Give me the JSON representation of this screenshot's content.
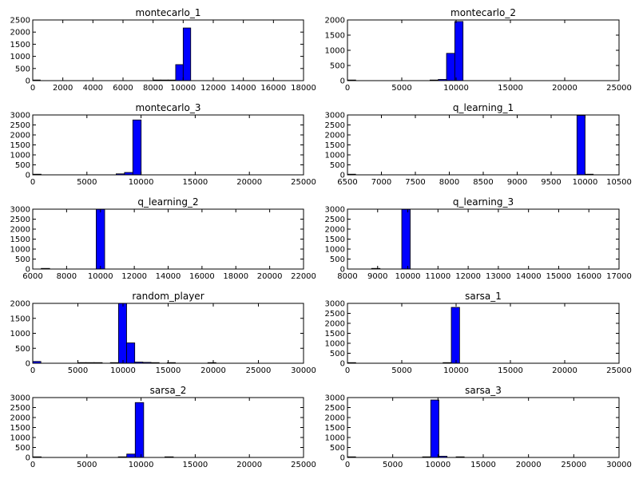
{
  "chart_data": [
    {
      "type": "bar",
      "title": "montecarlo_1",
      "xlim": [
        0,
        18000
      ],
      "ylim": [
        0,
        2500
      ],
      "xticks": [
        0,
        2000,
        4000,
        6000,
        8000,
        10000,
        12000,
        14000,
        16000,
        18000
      ],
      "yticks": [
        0,
        500,
        1000,
        1500,
        2000,
        2500
      ],
      "bin_edges": [
        0,
        10500
      ],
      "bin_width": 500,
      "bars": [
        {
          "x": 0,
          "value": 20
        },
        {
          "x": 8000,
          "value": 10
        },
        {
          "x": 8500,
          "value": 15
        },
        {
          "x": 9000,
          "value": 20
        },
        {
          "x": 9500,
          "value": 660
        },
        {
          "x": 10000,
          "value": 2170
        }
      ],
      "color": "#0000ff"
    },
    {
      "type": "bar",
      "title": "montecarlo_2",
      "xlim": [
        0,
        25000
      ],
      "ylim": [
        0,
        2000
      ],
      "xticks": [
        0,
        5000,
        10000,
        15000,
        20000,
        25000
      ],
      "yticks": [
        0,
        500,
        1000,
        1500,
        2000
      ],
      "bin_width": 760,
      "bars": [
        {
          "x": 0,
          "value": 15
        },
        {
          "x": 7600,
          "value": 10
        },
        {
          "x": 8360,
          "value": 40
        },
        {
          "x": 9120,
          "value": 900
        },
        {
          "x": 9880,
          "value": 1950
        }
      ],
      "color": "#0000ff"
    },
    {
      "type": "bar",
      "title": "montecarlo_3",
      "xlim": [
        0,
        25000
      ],
      "ylim": [
        0,
        3000
      ],
      "xticks": [
        0,
        5000,
        10000,
        15000,
        20000,
        25000
      ],
      "yticks": [
        0,
        500,
        1000,
        1500,
        2000,
        2500,
        3000
      ],
      "bin_width": 770,
      "bars": [
        {
          "x": 0,
          "value": 20
        },
        {
          "x": 7700,
          "value": 50
        },
        {
          "x": 8470,
          "value": 120
        },
        {
          "x": 9240,
          "value": 2750
        }
      ],
      "color": "#0000ff"
    },
    {
      "type": "bar",
      "title": "q_learning_1",
      "xlim": [
        6500,
        10500
      ],
      "ylim": [
        0,
        3000
      ],
      "xticks": [
        6500,
        7000,
        7500,
        8000,
        8500,
        9000,
        9500,
        10000,
        10500
      ],
      "yticks": [
        0,
        500,
        1000,
        1500,
        2000,
        2500,
        3000
      ],
      "bin_width": 120,
      "bars": [
        {
          "x": 6500,
          "value": 10
        },
        {
          "x": 9880,
          "value": 2980
        },
        {
          "x": 10000,
          "value": 10
        }
      ],
      "color": "#0000ff"
    },
    {
      "type": "bar",
      "title": "q_learning_2",
      "xlim": [
        6000,
        22000
      ],
      "ylim": [
        0,
        3000
      ],
      "xticks": [
        6000,
        8000,
        10000,
        12000,
        14000,
        16000,
        18000,
        20000,
        22000
      ],
      "yticks": [
        0,
        500,
        1000,
        1500,
        2000,
        2500,
        3000
      ],
      "bin_width": 500,
      "bars": [
        {
          "x": 6500,
          "value": 15
        },
        {
          "x": 9750,
          "value": 2990
        }
      ],
      "color": "#0000ff"
    },
    {
      "type": "bar",
      "title": "q_learning_3",
      "xlim": [
        8000,
        17000
      ],
      "ylim": [
        0,
        3000
      ],
      "xticks": [
        8000,
        9000,
        10000,
        11000,
        12000,
        13000,
        14000,
        15000,
        16000,
        17000
      ],
      "yticks": [
        0,
        500,
        1000,
        1500,
        2000,
        2500,
        3000
      ],
      "bin_width": 280,
      "bars": [
        {
          "x": 8800,
          "value": 10
        },
        {
          "x": 9800,
          "value": 2990
        }
      ],
      "color": "#0000ff"
    },
    {
      "type": "bar",
      "title": "random_player",
      "xlim": [
        0,
        30000
      ],
      "ylim": [
        0,
        2000
      ],
      "xticks": [
        0,
        5000,
        10000,
        15000,
        20000,
        25000,
        30000
      ],
      "yticks": [
        0,
        500,
        1000,
        1500,
        2000
      ],
      "bin_width": 900,
      "bars": [
        {
          "x": 0,
          "value": 60
        },
        {
          "x": 5000,
          "value": 10
        },
        {
          "x": 5900,
          "value": 10
        },
        {
          "x": 6800,
          "value": 10
        },
        {
          "x": 8600,
          "value": 20
        },
        {
          "x": 9500,
          "value": 2000
        },
        {
          "x": 10400,
          "value": 680
        },
        {
          "x": 11300,
          "value": 40
        },
        {
          "x": 12200,
          "value": 30
        },
        {
          "x": 13100,
          "value": 10
        },
        {
          "x": 14900,
          "value": 10
        },
        {
          "x": 19400,
          "value": 10
        }
      ],
      "color": "#0000ff"
    },
    {
      "type": "bar",
      "title": "sarsa_1",
      "xlim": [
        0,
        25000
      ],
      "ylim": [
        0,
        3000
      ],
      "xticks": [
        0,
        5000,
        10000,
        15000,
        20000,
        25000
      ],
      "yticks": [
        0,
        500,
        1000,
        1500,
        2000,
        2500,
        3000
      ],
      "bin_width": 760,
      "bars": [
        {
          "x": 0,
          "value": 20
        },
        {
          "x": 8800,
          "value": 15
        },
        {
          "x": 9560,
          "value": 2800
        }
      ],
      "color": "#0000ff"
    },
    {
      "type": "bar",
      "title": "sarsa_2",
      "xlim": [
        0,
        25000
      ],
      "ylim": [
        0,
        3000
      ],
      "xticks": [
        0,
        5000,
        10000,
        15000,
        20000,
        25000
      ],
      "yticks": [
        0,
        500,
        1000,
        1500,
        2000,
        2500,
        3000
      ],
      "bin_width": 780,
      "bars": [
        {
          "x": 0,
          "value": 20
        },
        {
          "x": 7900,
          "value": 10
        },
        {
          "x": 8680,
          "value": 170
        },
        {
          "x": 9460,
          "value": 2750
        },
        {
          "x": 12200,
          "value": 15
        }
      ],
      "color": "#0000ff"
    },
    {
      "type": "bar",
      "title": "sarsa_3",
      "xlim": [
        0,
        30000
      ],
      "ylim": [
        0,
        3000
      ],
      "xticks": [
        0,
        5000,
        10000,
        15000,
        20000,
        25000,
        30000
      ],
      "yticks": [
        0,
        500,
        1000,
        1500,
        2000,
        2500,
        3000
      ],
      "bin_width": 900,
      "bars": [
        {
          "x": 0,
          "value": 20
        },
        {
          "x": 8300,
          "value": 10
        },
        {
          "x": 9200,
          "value": 2880
        },
        {
          "x": 10100,
          "value": 60
        },
        {
          "x": 12000,
          "value": 15
        }
      ],
      "color": "#0000ff"
    }
  ]
}
